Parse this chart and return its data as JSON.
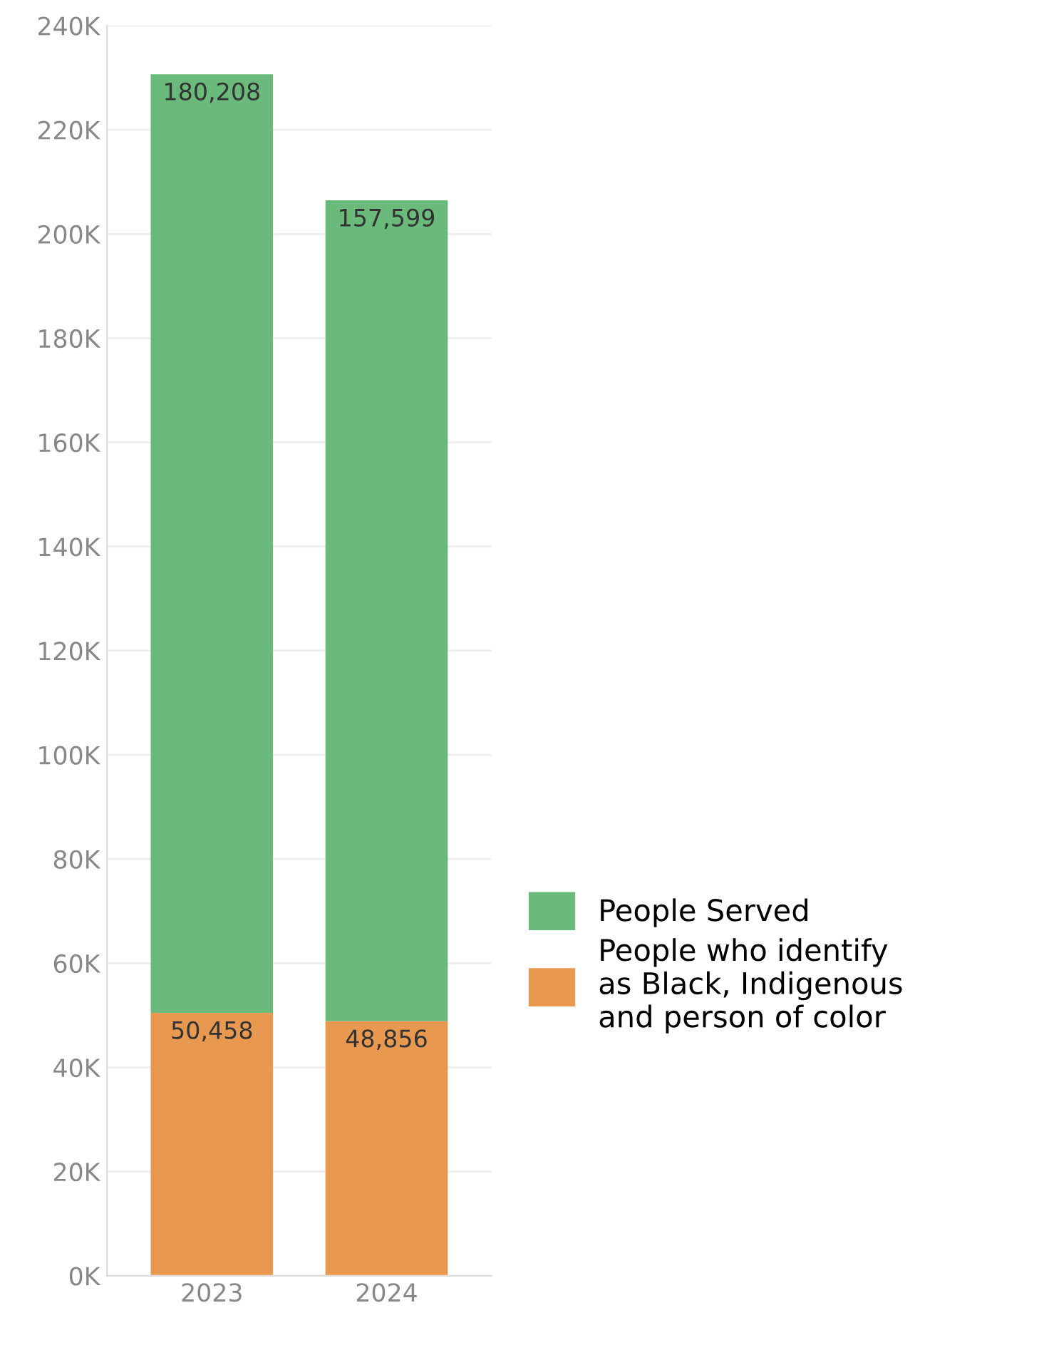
{
  "chart_data": {
    "type": "bar",
    "stacked": true,
    "categories": [
      "2023",
      "2024"
    ],
    "series": [
      {
        "name": "People who identify\nas Black, Indigenous\nand person of color",
        "color": "#e8994f",
        "values": [
          50458,
          48856
        ],
        "value_labels": [
          "50,458",
          "48,856"
        ]
      },
      {
        "name": "People Served",
        "color": "#6aba7c",
        "values": [
          180208,
          157599
        ],
        "value_labels": [
          "180,208",
          "157,599"
        ]
      }
    ],
    "ylim": [
      0,
      240000
    ],
    "yticks": [
      {
        "value": 0,
        "label": "0K"
      },
      {
        "value": 20000,
        "label": "20K"
      },
      {
        "value": 40000,
        "label": "40K"
      },
      {
        "value": 60000,
        "label": "60K"
      },
      {
        "value": 80000,
        "label": "80K"
      },
      {
        "value": 100000,
        "label": "100K"
      },
      {
        "value": 120000,
        "label": "120K"
      },
      {
        "value": 140000,
        "label": "140K"
      },
      {
        "value": 160000,
        "label": "160K"
      },
      {
        "value": 180000,
        "label": "180K"
      },
      {
        "value": 200000,
        "label": "200K"
      },
      {
        "value": 220000,
        "label": "220K"
      },
      {
        "value": 240000,
        "label": "240K"
      }
    ],
    "grid": "y",
    "legend": "right"
  }
}
